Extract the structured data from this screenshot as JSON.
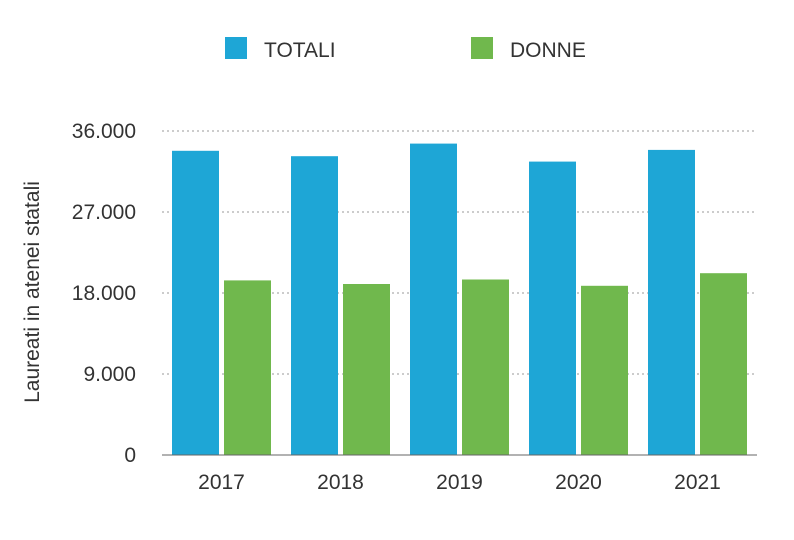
{
  "chart_data": {
    "type": "bar",
    "title": "",
    "xlabel": "",
    "ylabel": "Laureati in atenei statali",
    "categories": [
      "2017",
      "2018",
      "2019",
      "2020",
      "2021"
    ],
    "series": [
      {
        "name": "TOTALI",
        "color": "#1ea6d6",
        "values": [
          33800,
          33200,
          34600,
          32600,
          33900
        ]
      },
      {
        "name": "DONNE",
        "color": "#70b84d",
        "values": [
          19400,
          19000,
          19500,
          18800,
          20200
        ]
      }
    ],
    "ylim": [
      0,
      36000
    ],
    "yticks": [
      0,
      9000,
      18000,
      27000,
      36000
    ],
    "ytick_labels": [
      "0",
      "9.000",
      "18.000",
      "27.000",
      "36.000"
    ],
    "grid": true,
    "legend_position": "top-center"
  }
}
